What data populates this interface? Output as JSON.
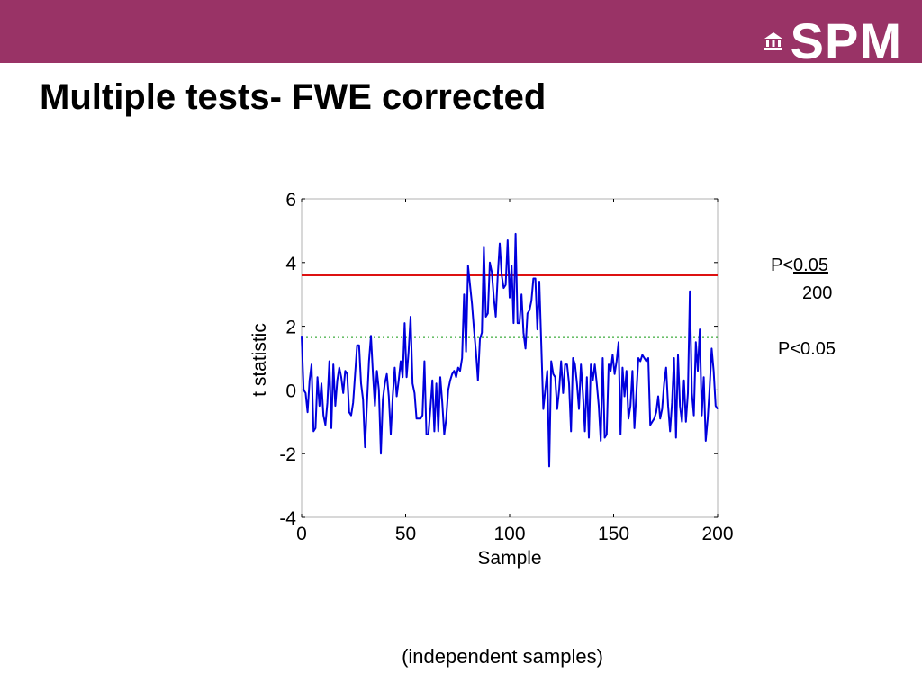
{
  "slide": {
    "title": "Multiple tests- FWE corrected",
    "caption": "(independent samples)",
    "logo_text": "SPM",
    "header_color": "#993366"
  },
  "annotations": {
    "fwe_prefix": "P<",
    "fwe_numerator": "0.05",
    "fwe_denominator": "200",
    "uncorrected": "P<0.05"
  },
  "chart_data": {
    "type": "line",
    "title": "",
    "xlabel": "Sample",
    "ylabel": "t statistic",
    "xlim": [
      0,
      200
    ],
    "ylim": [
      -4,
      6
    ],
    "xticks": [
      0,
      50,
      100,
      150,
      200
    ],
    "yticks": [
      -4,
      -2,
      0,
      2,
      4,
      6
    ],
    "grid": false,
    "series": [
      {
        "color": "#0000dd",
        "values": [
          1.7,
          0.0,
          -0.1,
          -0.7,
          0.3,
          0.8,
          -1.3,
          -1.2,
          0.4,
          -0.5,
          0.2,
          -0.8,
          -1.1,
          -0.4,
          0.9,
          -1.2,
          0.8,
          -0.5,
          0.3,
          0.7,
          0.4,
          -0.1,
          0.6,
          0.5,
          -0.7,
          -0.8,
          -0.4,
          0.5,
          1.4,
          1.4,
          0.2,
          -0.3,
          -1.8,
          -0.4,
          0.9,
          1.7,
          0.5,
          -0.5,
          0.6,
          0.0,
          -2.0,
          -0.3,
          0.2,
          0.5,
          -0.2,
          -1.4,
          -0.2,
          0.7,
          -0.2,
          0.3,
          0.9,
          0.4,
          2.1,
          0.4,
          1.2,
          2.3,
          0.2,
          -0.1,
          -0.9,
          -0.9,
          -0.9,
          -0.8,
          0.9,
          -1.4,
          -1.4,
          -0.6,
          0.3,
          -1.3,
          0.2,
          -1.3,
          0.4,
          -0.4,
          -1.4,
          -0.9,
          0.0,
          0.3,
          0.5,
          0.6,
          0.4,
          0.7,
          0.6,
          1.0,
          3.0,
          1.2,
          3.9,
          3.3,
          2.7,
          1.9,
          1.2,
          0.3,
          1.6,
          1.8,
          4.5,
          2.3,
          2.4,
          4.0,
          3.7,
          2.9,
          2.3,
          3.6,
          4.6,
          3.6,
          3.2,
          3.3,
          4.7,
          2.9,
          3.9,
          2.1,
          4.9,
          2.1,
          2.1,
          3.0,
          1.8,
          1.3,
          2.4,
          2.5,
          2.8,
          3.5,
          3.5,
          1.9,
          3.4,
          1.4,
          -0.6,
          0.0,
          0.6,
          -2.4,
          0.9,
          0.5,
          0.4,
          -0.6,
          0.0,
          0.9,
          -0.1,
          0.8,
          0.8,
          0.2,
          -1.3,
          1.0,
          0.8,
          0.2,
          -0.6,
          0.8,
          -0.1,
          -1.3,
          0.4,
          -1.5,
          0.8,
          0.3,
          0.8,
          0.2,
          -0.5,
          -1.6,
          1.0,
          -1.5,
          -1.4,
          0.8,
          0.6,
          1.1,
          0.5,
          0.9,
          1.5,
          -1.4,
          0.7,
          -0.2,
          0.6,
          -0.9,
          -0.5,
          0.6,
          -1.2,
          -0.1,
          1.0,
          0.9,
          1.1,
          1.0,
          0.9,
          1.0,
          -1.1,
          -1.0,
          -0.9,
          -0.7,
          -0.2,
          -0.9,
          -0.6,
          0.2,
          0.7,
          -0.5,
          -1.3,
          -0.4,
          1.0,
          -1.5,
          1.1,
          -0.5,
          -1.0,
          0.3,
          -1.0,
          -0.1,
          3.1,
          -0.1,
          -0.8,
          1.5,
          0.6,
          1.9,
          -0.8,
          0.4,
          -1.6,
          -0.9,
          0.1,
          1.3,
          0.6,
          -0.5,
          -0.6
        ]
      }
    ],
    "thresholds": [
      {
        "value": 3.6,
        "color": "#dd1111",
        "style": "solid",
        "label": "P<0.05 / 200"
      },
      {
        "value": 1.66,
        "color": "#119911",
        "style": "dotted",
        "label": "P<0.05"
      }
    ]
  }
}
